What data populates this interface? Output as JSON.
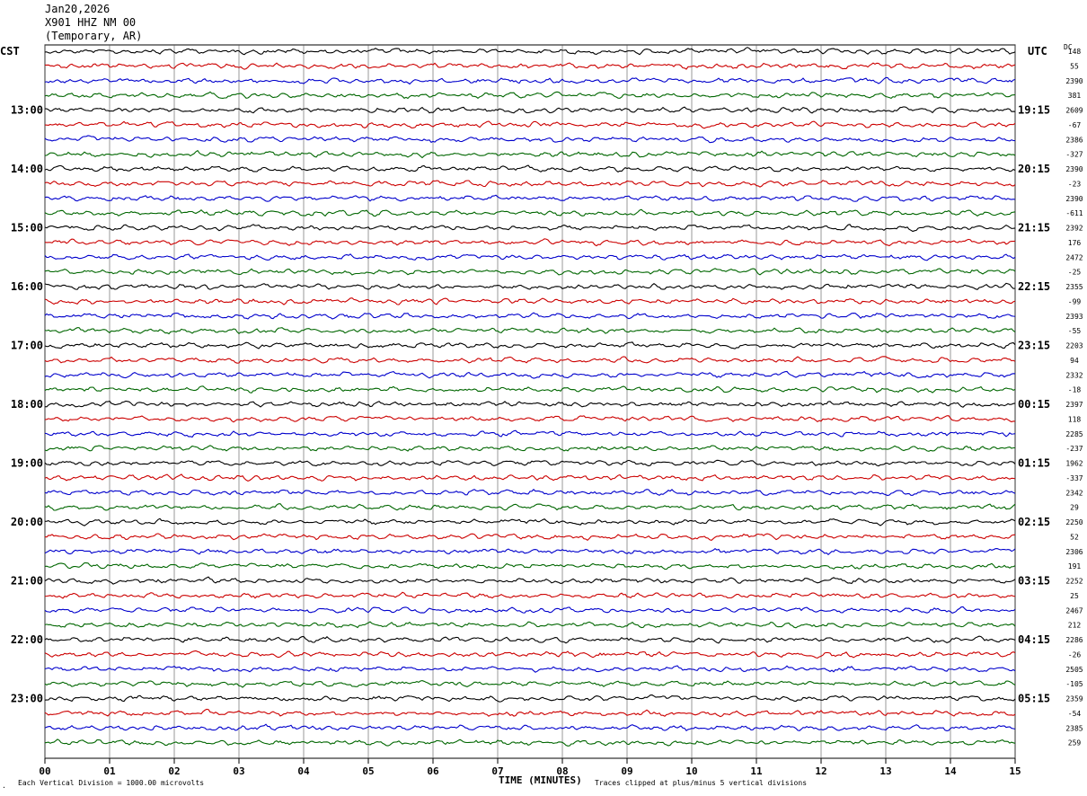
{
  "header": {
    "date": "Jan20,2026",
    "station": "X901 HHZ NM 00",
    "network": "(Temporary, AR)"
  },
  "left_zone_label": "CST",
  "right_zone_label": "UTC",
  "dc_label": "DC",
  "footer": {
    "scale_note": "Each Vertical Division = 1000.00 microvolts",
    "clip_note": "Traces clipped at plus/minus 5 vertical divisions",
    "corner_mark": "."
  },
  "chart_data": {
    "type": "line",
    "title": "",
    "xlabel": "TIME (MINUTES)",
    "ylabel": "",
    "xlim": [
      0,
      15
    ],
    "x_ticks": [
      "00",
      "01",
      "02",
      "03",
      "04",
      "05",
      "06",
      "07",
      "08",
      "09",
      "10",
      "11",
      "12",
      "13",
      "14",
      "15"
    ],
    "trace_colors": [
      "#000000",
      "#cc0000",
      "#0000cc",
      "#006600"
    ],
    "trace_count": 48,
    "row_interval_minutes": 15,
    "grid": true,
    "left_time_labels": [
      {
        "row": 4,
        "text": "13:00"
      },
      {
        "row": 8,
        "text": "14:00"
      },
      {
        "row": 12,
        "text": "15:00"
      },
      {
        "row": 16,
        "text": "16:00"
      },
      {
        "row": 20,
        "text": "17:00"
      },
      {
        "row": 24,
        "text": "18:00"
      },
      {
        "row": 28,
        "text": "19:00"
      },
      {
        "row": 32,
        "text": "20:00"
      },
      {
        "row": 36,
        "text": "21:00"
      },
      {
        "row": 40,
        "text": "22:00"
      },
      {
        "row": 44,
        "text": "23:00"
      }
    ],
    "right_time_labels": [
      {
        "row": 4,
        "text": "19:15"
      },
      {
        "row": 8,
        "text": "20:15"
      },
      {
        "row": 12,
        "text": "21:15"
      },
      {
        "row": 16,
        "text": "22:15"
      },
      {
        "row": 20,
        "text": "23:15"
      },
      {
        "row": 24,
        "text": "00:15"
      },
      {
        "row": 28,
        "text": "01:15"
      },
      {
        "row": 32,
        "text": "02:15"
      },
      {
        "row": 36,
        "text": "03:15"
      },
      {
        "row": 40,
        "text": "04:15"
      },
      {
        "row": 44,
        "text": "05:15"
      }
    ],
    "dc_offsets": [
      "148",
      "55",
      "2390",
      "381",
      "2609",
      "-67",
      "2386",
      "-327",
      "2390",
      "-23",
      "2390",
      "-611",
      "2392",
      "176",
      "2472",
      "-25",
      "2355",
      "-99",
      "2393",
      "-55",
      "2203",
      "94",
      "2332",
      "-18",
      "2397",
      "118",
      "2285",
      "-237",
      "1962",
      "-337",
      "2342",
      "29",
      "2250",
      "52",
      "2306",
      "191",
      "2252",
      "25",
      "2467",
      "212",
      "2286",
      "-26",
      "2505",
      "-105",
      "2359",
      "-54",
      "2385",
      "259"
    ]
  }
}
